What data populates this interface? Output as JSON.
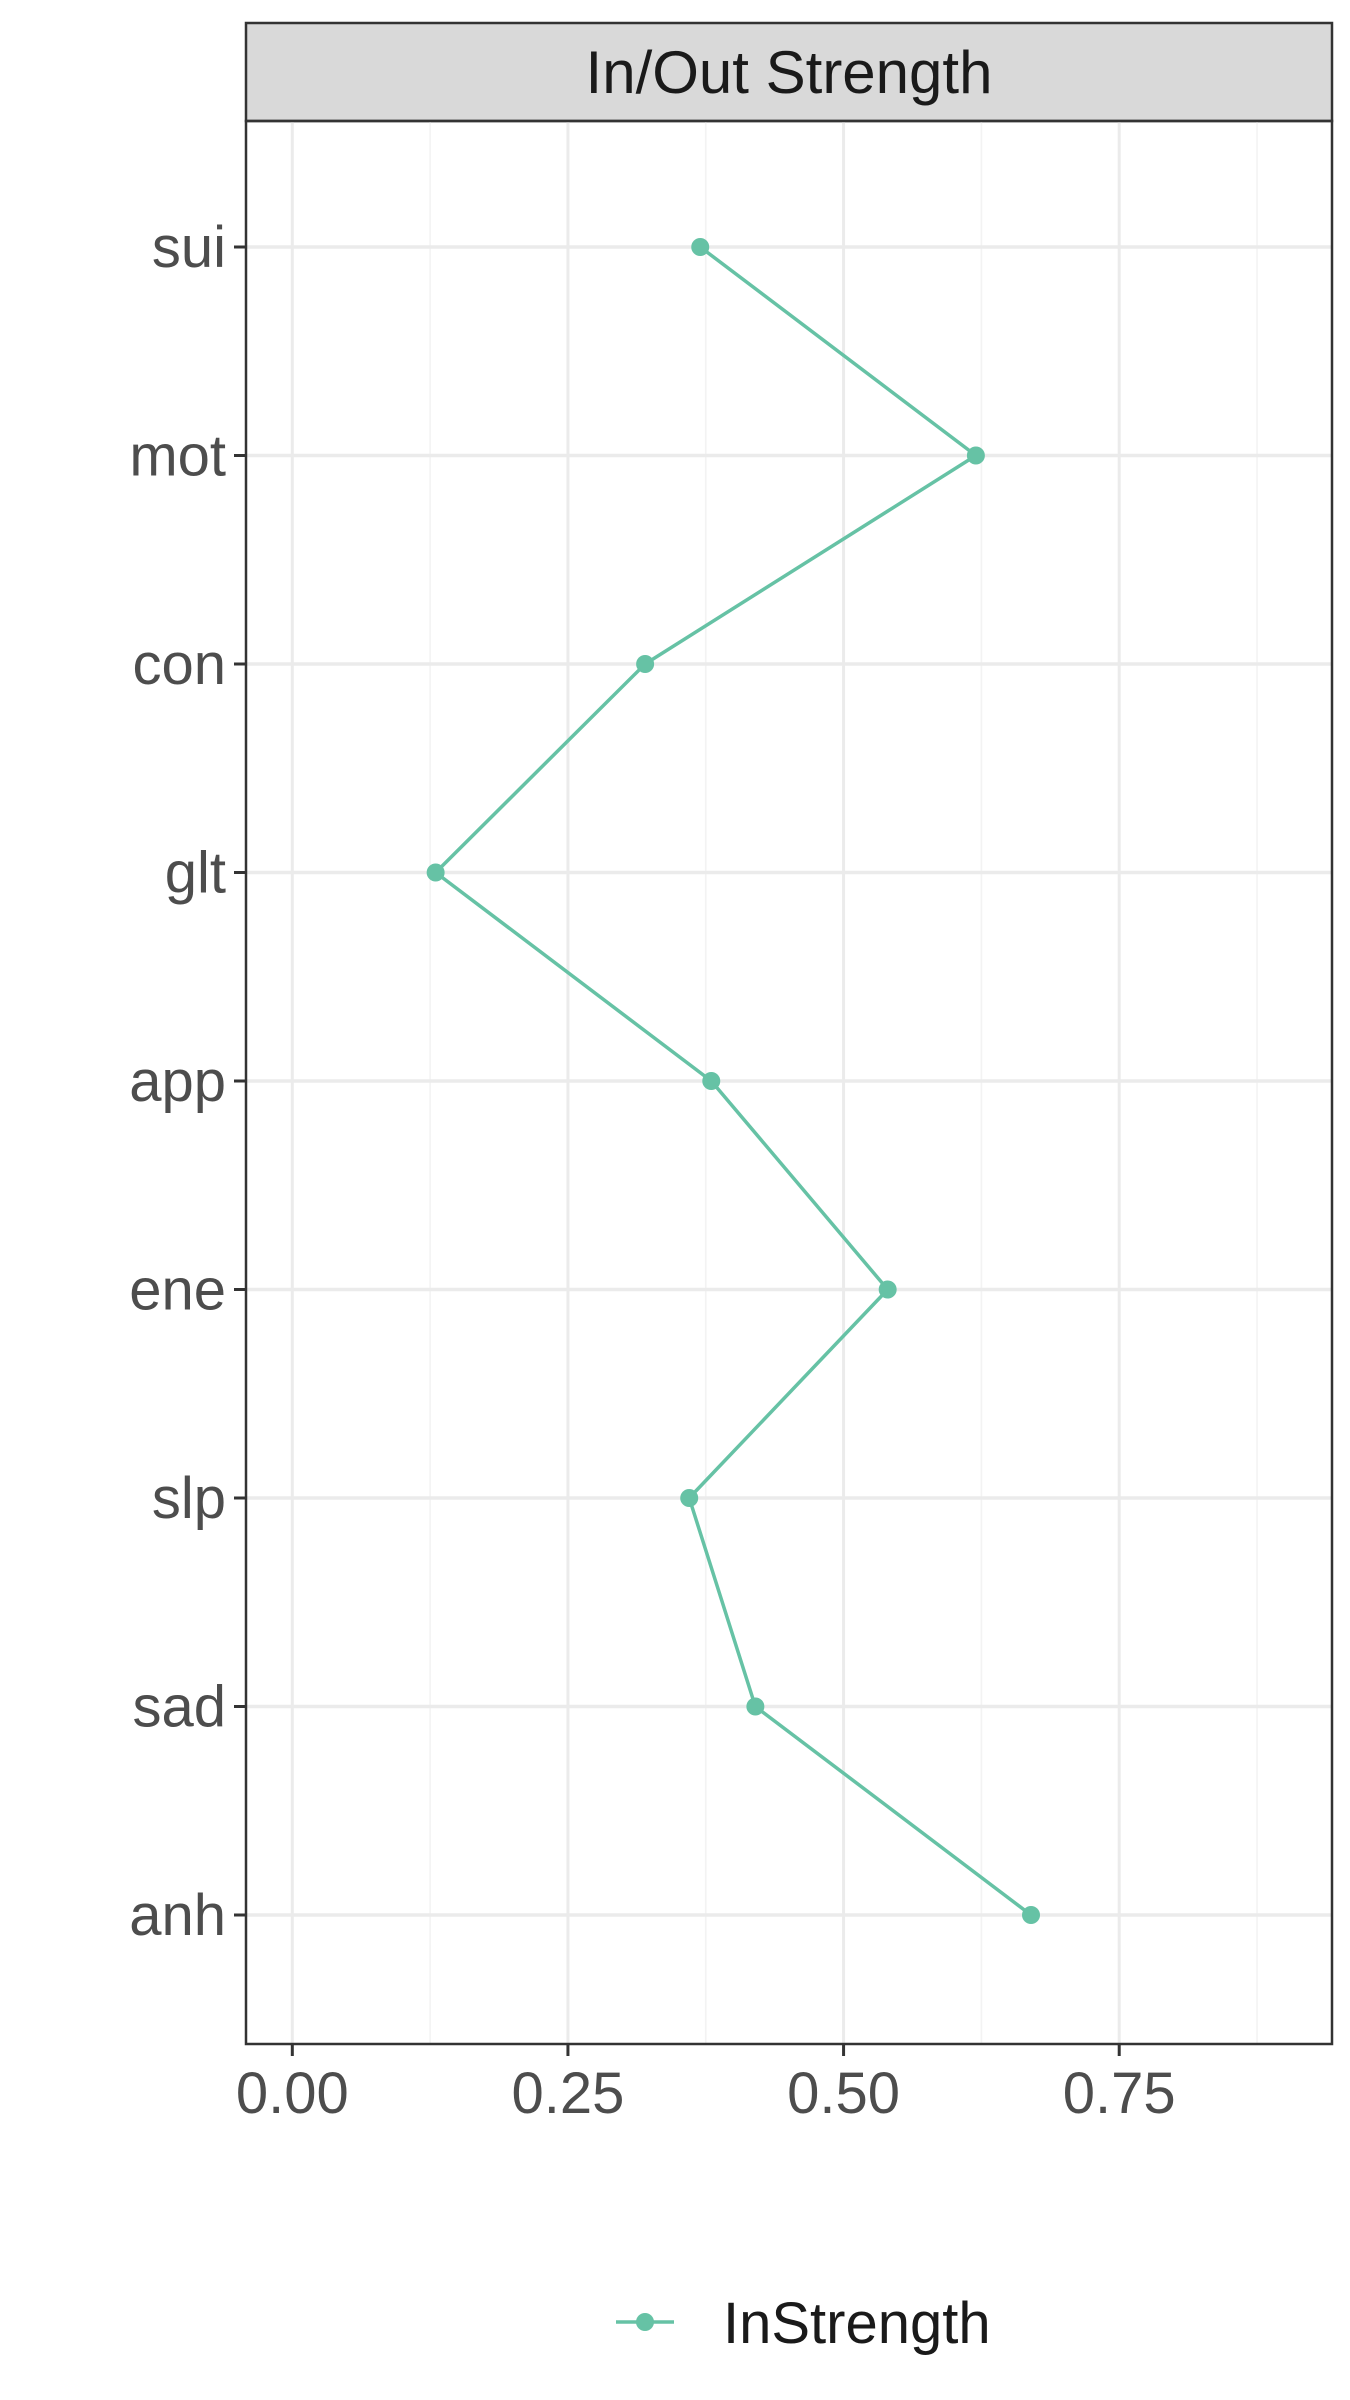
{
  "chart_data": {
    "type": "line",
    "title": "In/Out Strength",
    "orientation": "horizontal-values",
    "categories": [
      "sui",
      "mot",
      "con",
      "glt",
      "app",
      "ene",
      "slp",
      "sad",
      "anh"
    ],
    "series": [
      {
        "name": "InStrength",
        "values": [
          0.37,
          0.62,
          0.32,
          0.13,
          0.38,
          0.54,
          0.36,
          0.42,
          0.67
        ]
      }
    ],
    "xlim": [
      -0.042,
      0.943
    ],
    "x_ticks": [
      0.0,
      0.25,
      0.5,
      0.75
    ],
    "x_tick_labels": [
      "0.00",
      "0.25",
      "0.50",
      "0.75"
    ],
    "xlabel": "",
    "ylabel": "",
    "grid": true,
    "legend_position": "bottom",
    "colors": {
      "series": "#66c2a5",
      "strip_fill": "#d9d9d9",
      "grid_major": "#ebebeb",
      "grid_minor": "#f3f3f3",
      "panel_border": "#333333",
      "tick_text": "#4d4d4d"
    }
  }
}
